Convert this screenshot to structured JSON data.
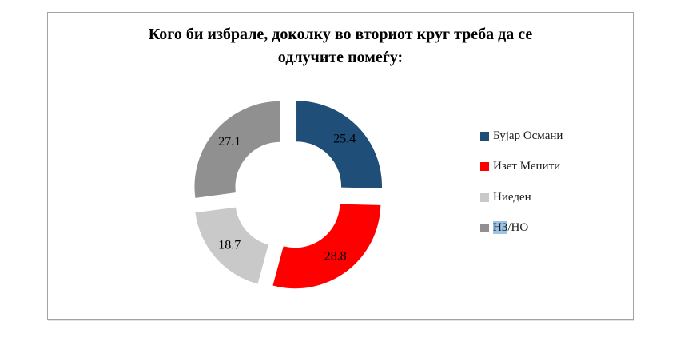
{
  "title_lines": [
    "Кого би избрале, доколку во вториот круг треба да се",
    "одлучите помеѓу:"
  ],
  "chart_data": {
    "type": "pie",
    "variant": "exploded-doughnut",
    "title": "Кого би избрале, доколку во вториот круг треба да се одлучите помеѓу:",
    "categories": [
      "Бујар Османи",
      "Изет Меџити",
      "Ниеден",
      "НЗ/НО"
    ],
    "values": [
      25.4,
      28.8,
      18.7,
      27.1
    ],
    "colors": [
      "#1F4E79",
      "#FF0000",
      "#C9C9C9",
      "#909090"
    ],
    "data_labels": [
      "25.4",
      "28.8",
      "18.7",
      "27.1"
    ],
    "label_color": "#000000",
    "start_angle_deg": 0,
    "direction": "clockwise",
    "hole_ratio": 0.52,
    "grid": false,
    "legend_position": "right"
  },
  "legend": {
    "text_color": "#1a1a1a",
    "items": [
      {
        "label": "Бујар Османи",
        "color": "#1F4E79"
      },
      {
        "label": "Изет Меџити",
        "color": "#FF0000"
      },
      {
        "label": "Ниеден",
        "color": "#C9C9C9"
      },
      {
        "label": "НЗ/НО",
        "color": "#909090",
        "highlight_prefix": "НЗ",
        "highlight_color": "#9DC3E6"
      }
    ]
  }
}
